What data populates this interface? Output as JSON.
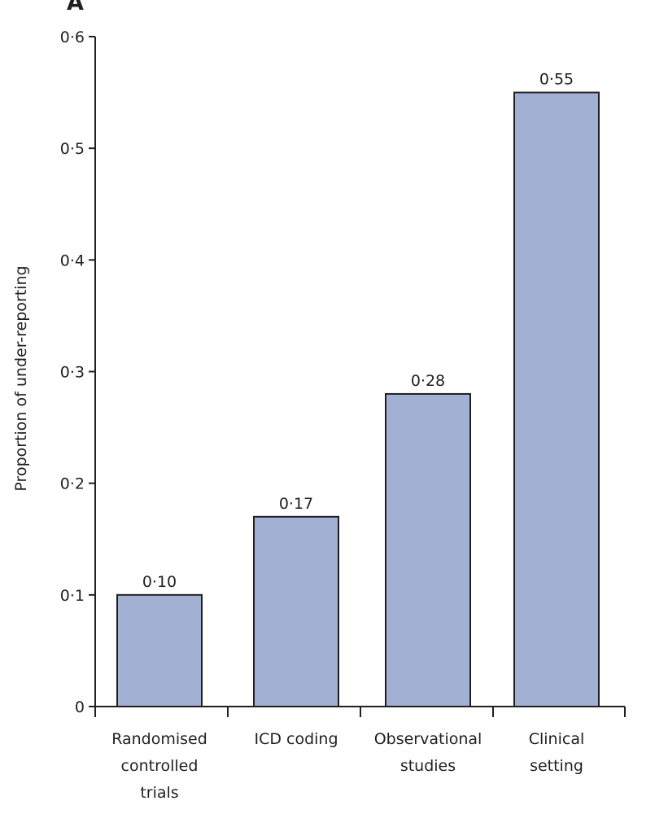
{
  "chart_data": {
    "type": "bar",
    "panel_label": "A",
    "categories": [
      [
        "Randomised",
        "controlled",
        "trials"
      ],
      [
        "ICD coding"
      ],
      [
        "Observational",
        "studies"
      ],
      [
        "Clinical",
        "setting"
      ]
    ],
    "values": [
      0.1,
      0.17,
      0.28,
      0.55
    ],
    "value_labels": [
      "0·10",
      "0·17",
      "0·28",
      "0·55"
    ],
    "ylabel": "Proportion of under-reporting",
    "xlabel": "",
    "ylim": [
      0,
      0.6
    ],
    "yticks": [
      0,
      0.1,
      0.2,
      0.3,
      0.4,
      0.5,
      0.6
    ],
    "ytick_labels": [
      "0",
      "0·1",
      "0·2",
      "0·3",
      "0·4",
      "0·5",
      "0·6"
    ],
    "grid": false,
    "bar_color": "#a2b0d4",
    "edge_color": "#231f20"
  }
}
